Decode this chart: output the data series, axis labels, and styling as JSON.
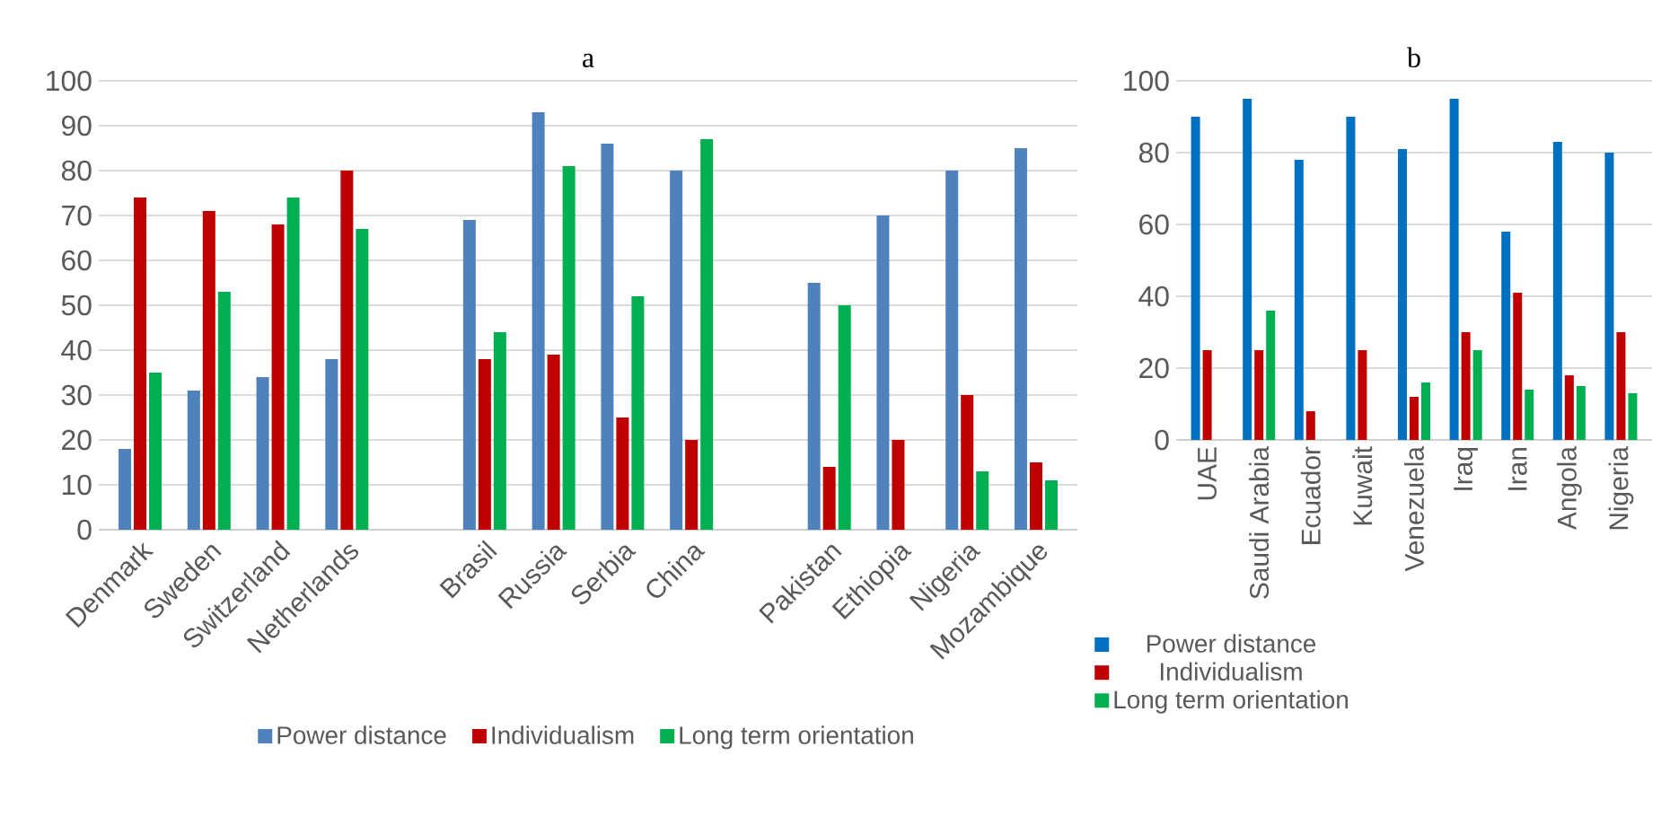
{
  "chart_data": [
    {
      "type": "bar",
      "title": "a",
      "categories": [
        "Denmark",
        "Sweden",
        "Switzerland",
        "Netherlands",
        null,
        "Brasil",
        "Russia",
        "Serbia",
        "China",
        null,
        "Pakistan",
        "Ethiopia",
        "Nigeria",
        "Mozambique"
      ],
      "series": [
        {
          "name": "Power distance",
          "color": "#4f81bd",
          "values": [
            18,
            31,
            34,
            38,
            null,
            69,
            93,
            86,
            80,
            null,
            55,
            70,
            80,
            85
          ]
        },
        {
          "name": "Individualism",
          "color": "#c00000",
          "values": [
            74,
            71,
            68,
            80,
            null,
            38,
            39,
            25,
            20,
            null,
            14,
            20,
            30,
            15
          ]
        },
        {
          "name": "Long term orientation",
          "color": "#00b050",
          "values": [
            35,
            53,
            74,
            67,
            null,
            44,
            81,
            52,
            87,
            null,
            50,
            null,
            13,
            11
          ]
        }
      ],
      "ylim": [
        0,
        100
      ],
      "yticks": [
        0,
        10,
        20,
        30,
        40,
        50,
        60,
        70,
        80,
        90,
        100
      ],
      "grid": "y",
      "legend": "bottom"
    },
    {
      "type": "bar",
      "title": "b",
      "categories": [
        "UAE",
        "Saudi Arabia",
        "Ecuador",
        "Kuwait",
        "Venezuela",
        "Iraq",
        "Iran",
        "Angola",
        "Nigeria"
      ],
      "series": [
        {
          "name": "Power distance",
          "color": "#0070c0",
          "values": [
            90,
            95,
            78,
            90,
            81,
            95,
            58,
            83,
            80
          ]
        },
        {
          "name": "Individualism",
          "color": "#c00000",
          "values": [
            25,
            25,
            8,
            25,
            12,
            30,
            41,
            18,
            30
          ]
        },
        {
          "name": "Long term orientation",
          "color": "#00b050",
          "values": [
            null,
            36,
            null,
            null,
            16,
            25,
            14,
            15,
            13
          ]
        }
      ],
      "ylim": [
        0,
        100
      ],
      "yticks": [
        0,
        20,
        40,
        60,
        80,
        100
      ],
      "grid": "y",
      "legend": "bottom"
    }
  ]
}
